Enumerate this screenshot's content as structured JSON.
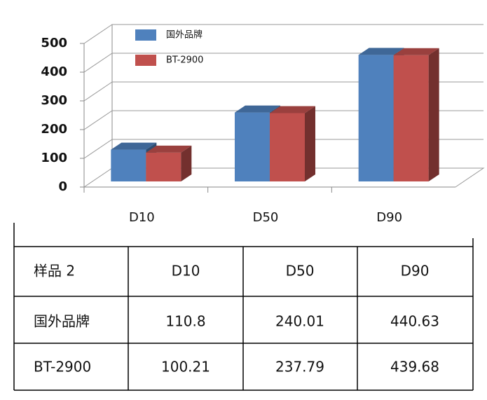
{
  "chart_data": {
    "type": "bar3d",
    "categories": [
      "D10",
      "D50",
      "D90"
    ],
    "series": [
      {
        "name": "国外品牌",
        "color": "#4f81bd",
        "values": [
          110.8,
          240.01,
          440.63
        ]
      },
      {
        "name": "BT-2900",
        "color": "#c0504d",
        "values": [
          100.21,
          237.79,
          439.68
        ]
      }
    ],
    "ylim": [
      0,
      500
    ],
    "yticks": [
      0,
      100,
      200,
      300,
      400,
      500
    ],
    "grid": true
  },
  "table": {
    "corner": "样品 2"
  }
}
